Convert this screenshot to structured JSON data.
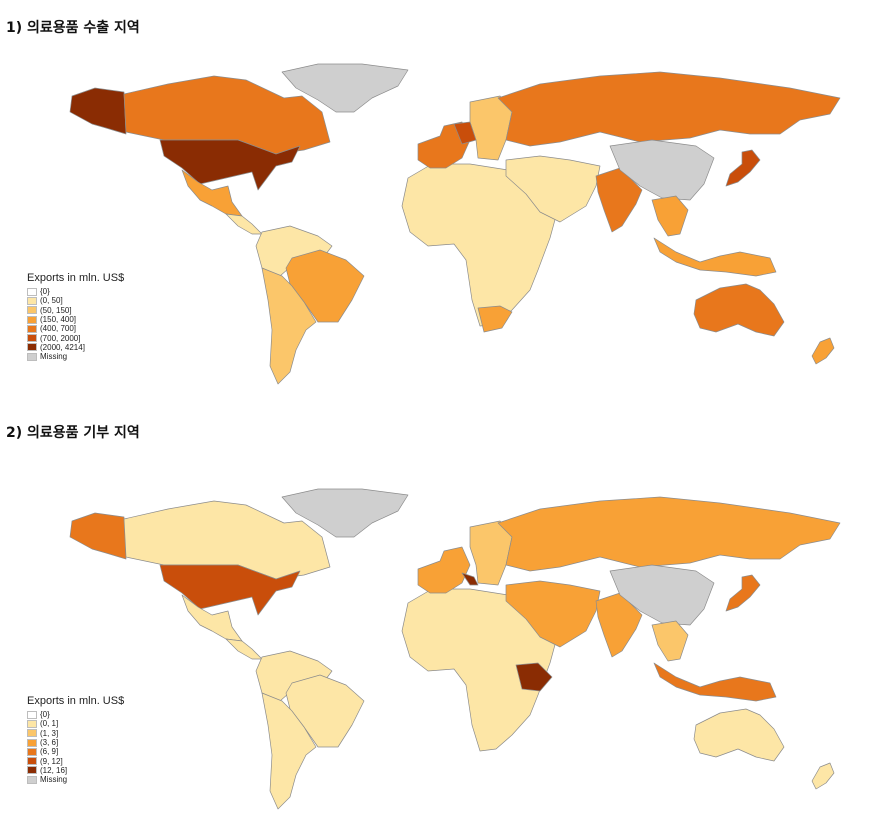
{
  "panels": [
    {
      "title": "1) 의료용품 수출 지역",
      "legend": {
        "title": "Exports in mln. US$",
        "items": [
          {
            "label": "{0}",
            "color": "#ffffff"
          },
          {
            "label": "(0, 50]",
            "color": "#fde6a6"
          },
          {
            "label": "(50, 150]",
            "color": "#fbc66a"
          },
          {
            "label": "(150, 400]",
            "color": "#f8a136"
          },
          {
            "label": "(400, 700]",
            "color": "#e8771c"
          },
          {
            "label": "(700, 2000]",
            "color": "#c94e0b"
          },
          {
            "label": "(2000, 4214]",
            "color": "#8a2c03"
          },
          {
            "label": "Missing",
            "color": "#cfcfcf"
          }
        ]
      },
      "regions": {
        "alaska": 6,
        "canada": 4,
        "greenland": 7,
        "usa": 6,
        "mexico": 3,
        "central_america": 1,
        "south_america_north": 1,
        "brazil": 3,
        "south_america_south": 2,
        "africa": 1,
        "south_africa": 3,
        "western_europe": 4,
        "germany": 5,
        "east_europe": 2,
        "russia": 4,
        "middle_east": 1,
        "india": 4,
        "china": 7,
        "japan": 5,
        "southeast_asia": 3,
        "indonesia": 3,
        "australia": 4,
        "new_zealand": 3
      }
    },
    {
      "title": "2) 의료용품 기부 지역",
      "legend": {
        "title": "Exports in mln. US$",
        "items": [
          {
            "label": "{0}",
            "color": "#ffffff"
          },
          {
            "label": "(0, 1]",
            "color": "#fde6a6"
          },
          {
            "label": "(1, 3]",
            "color": "#fbc66a"
          },
          {
            "label": "(3, 6]",
            "color": "#f8a136"
          },
          {
            "label": "(6, 9]",
            "color": "#e8771c"
          },
          {
            "label": "(9, 12]",
            "color": "#c94e0b"
          },
          {
            "label": "(12, 16]",
            "color": "#8a2c03"
          },
          {
            "label": "Missing",
            "color": "#cfcfcf"
          }
        ]
      },
      "regions": {
        "alaska": 4,
        "canada": 1,
        "greenland": 7,
        "usa": 5,
        "mexico": 1,
        "central_america": 1,
        "south_america_north": 1,
        "brazil": 1,
        "south_america_south": 1,
        "africa": 1,
        "ethiopia": 6,
        "western_europe": 3,
        "italy": 6,
        "east_europe": 2,
        "russia": 3,
        "middle_east": 3,
        "india": 3,
        "china": 7,
        "japan": 4,
        "southeast_asia": 2,
        "indonesia": 4,
        "australia": 1,
        "new_zealand": 1
      }
    }
  ]
}
